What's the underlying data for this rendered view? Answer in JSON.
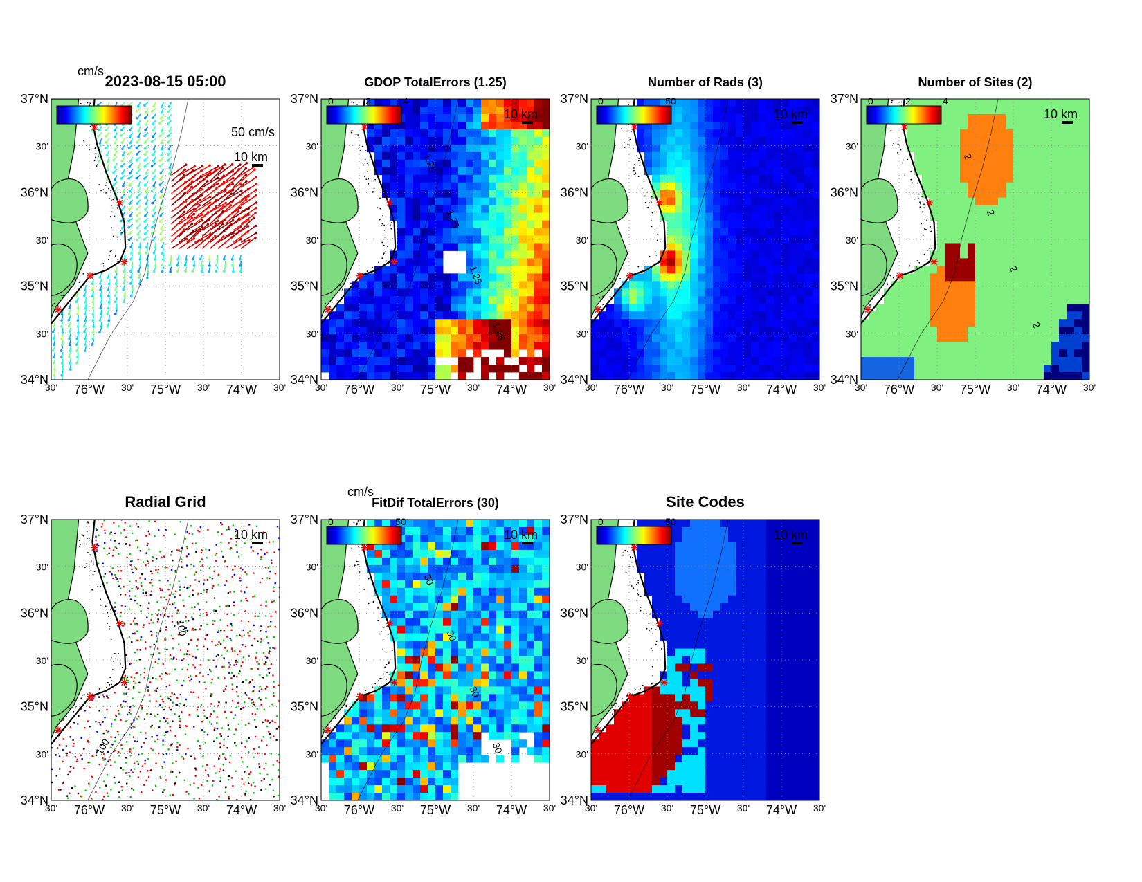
{
  "colors": {
    "land": "#7fdb7f",
    "ocean_low": "#0000a8",
    "coast": "#000000",
    "site_marker": "#ff0000",
    "panel_bg": "#ffffff"
  },
  "common": {
    "lat_labels": [
      "37°N",
      "30'",
      "36°N",
      "30'",
      "35°N",
      "30'",
      "34°N"
    ],
    "lon_labels": [
      "30'",
      "76°W",
      "30'",
      "75°W",
      "30'",
      "74°W",
      "30'"
    ],
    "scale_bar_label": "10 km"
  },
  "chart_data": [
    {
      "id": "total-vectors",
      "type": "vector-map",
      "title": "2023-08-15 05:00",
      "colorbar_unit": "cm/s",
      "colorbar_ticks": [],
      "vector_scale_label": "50 cm/s",
      "xlim": [
        -76.5,
        -73.5
      ],
      "ylim": [
        34,
        37
      ]
    },
    {
      "id": "gdop",
      "type": "heatmap",
      "title": "GDOP TotalErrors (1.25)",
      "colorbar_ticks": [
        "0",
        "2",
        "4"
      ],
      "contour_levels": [
        1.25
      ],
      "contour_labels": [
        "1.25"
      ],
      "xlim": [
        -76.5,
        -73.5
      ],
      "ylim": [
        34,
        37
      ]
    },
    {
      "id": "num-rads",
      "type": "heatmap",
      "title": "Number of Rads (3)",
      "colorbar_ticks": [
        "0",
        "50"
      ],
      "contour_levels": [
        3
      ],
      "xlim": [
        -76.5,
        -73.5
      ],
      "ylim": [
        34,
        37
      ]
    },
    {
      "id": "num-sites",
      "type": "heatmap",
      "title": "Number of Sites (2)",
      "colorbar_ticks": [
        "0",
        "2",
        "4"
      ],
      "contour_levels": [
        2
      ],
      "contour_labels": [
        "2"
      ],
      "xlim": [
        -76.5,
        -73.5
      ],
      "ylim": [
        34,
        37
      ]
    },
    {
      "id": "radial-grid",
      "type": "scatter-map",
      "title": "Radial Grid",
      "contour_labels": [
        "100"
      ],
      "site_colors": [
        "#0000ff",
        "#ff0000",
        "#00cc00",
        "#ff0000",
        "#000000"
      ],
      "xlim": [
        -76.5,
        -73.5
      ],
      "ylim": [
        34,
        37
      ]
    },
    {
      "id": "fitdif",
      "type": "heatmap",
      "title": "FitDif TotalErrors (30)",
      "colorbar_unit": "cm/s",
      "colorbar_ticks": [
        "0",
        "50"
      ],
      "contour_levels": [
        30
      ],
      "contour_labels": [
        "30"
      ],
      "xlim": [
        -76.5,
        -73.5
      ],
      "ylim": [
        34,
        37
      ]
    },
    {
      "id": "site-codes",
      "type": "heatmap",
      "title": "Site Codes",
      "colorbar_ticks": [
        "0",
        "50"
      ],
      "xlim": [
        -76.5,
        -73.5
      ],
      "ylim": [
        34,
        37
      ]
    }
  ]
}
